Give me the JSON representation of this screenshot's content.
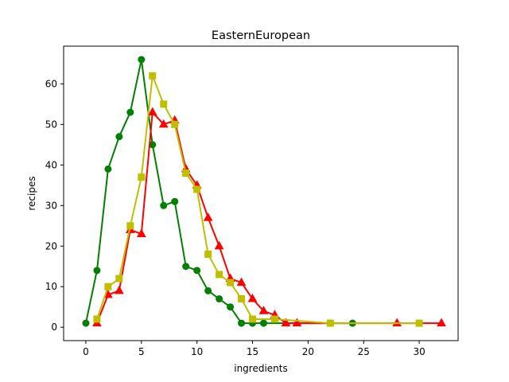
{
  "chart_data": {
    "type": "line",
    "title": "EasternEuropean",
    "xlabel": "ingredients",
    "ylabel": "recipes",
    "xlim": [
      -2,
      33.5
    ],
    "ylim": [
      -3.3,
      69.3
    ],
    "xticks": [
      0,
      5,
      10,
      15,
      20,
      25,
      30
    ],
    "yticks": [
      0,
      10,
      20,
      30,
      40,
      50,
      60
    ],
    "grid": false,
    "series": [
      {
        "color": "#008000",
        "marker": "circle",
        "x": [
          0,
          1,
          2,
          3,
          4,
          5,
          6,
          7,
          8,
          9,
          10,
          11,
          12,
          13,
          14,
          15,
          16,
          22,
          24
        ],
        "y": [
          1,
          14,
          39,
          47,
          53,
          66,
          45,
          30,
          31,
          15,
          14,
          9,
          7,
          5,
          1,
          1,
          1,
          1,
          1
        ]
      },
      {
        "color": "#ff0000",
        "marker": "triangle",
        "x": [
          1,
          2,
          3,
          4,
          5,
          6,
          7,
          8,
          9,
          10,
          11,
          12,
          13,
          14,
          15,
          16,
          17,
          18,
          19,
          28,
          32
        ],
        "y": [
          1,
          8,
          9,
          24,
          23,
          53,
          50,
          51,
          39,
          35,
          27,
          20,
          12,
          11,
          7,
          4,
          3,
          1,
          1,
          1,
          1
        ]
      },
      {
        "color": "#bfbf00",
        "marker": "square",
        "x": [
          1,
          2,
          3,
          4,
          5,
          6,
          7,
          8,
          9,
          10,
          11,
          12,
          13,
          14,
          15,
          17,
          22,
          30
        ],
        "y": [
          2,
          10,
          12,
          25,
          37,
          62,
          55,
          50,
          38,
          34,
          18,
          13,
          11,
          7,
          2,
          2,
          1,
          1
        ]
      }
    ]
  }
}
